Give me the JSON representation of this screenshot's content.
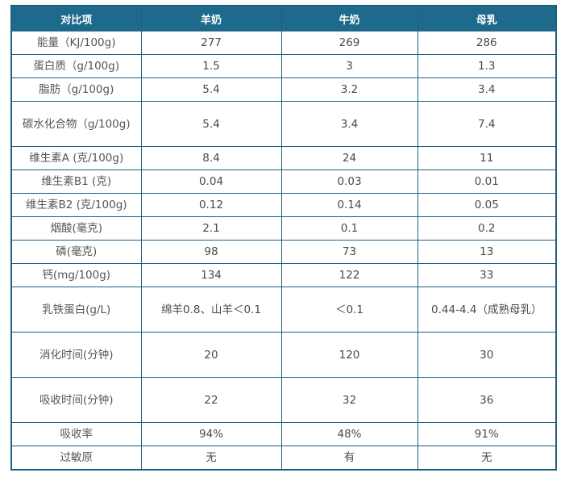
{
  "headers": [
    "对比项",
    "羊奶",
    "牛奶",
    "母乳"
  ],
  "rows": [
    {
      "label": "能量（KJ/100g)",
      "goat": "277",
      "cow": "269",
      "breast": "286"
    },
    {
      "label": "蛋白质（g/100g)",
      "goat": "1.5",
      "cow": "3",
      "breast": "1.3"
    },
    {
      "label": "脂肪（g/100g)",
      "goat": "5.4",
      "cow": "3.2",
      "breast": "3.4"
    },
    {
      "label": "碳水化合物（g/100g)",
      "goat": "5.4",
      "cow": "3.4",
      "breast": "7.4"
    },
    {
      "label": "维生素A (克/100g)",
      "goat": "8.4",
      "cow": "24",
      "breast": "11"
    },
    {
      "label": "维生素B1 (克)",
      "goat": "0.04",
      "cow": "0.03",
      "breast": "0.01"
    },
    {
      "label": "维生素B2 (克/100g)",
      "goat": "0.12",
      "cow": "0.14",
      "breast": "0.05"
    },
    {
      "label": "烟酸(毫克)",
      "goat": "2.1",
      "cow": "0.1",
      "breast": "0.2"
    },
    {
      "label": "磷(毫克)",
      "goat": "98",
      "cow": "73",
      "breast": "13"
    },
    {
      "label": "钙(mg/100g)",
      "goat": "134",
      "cow": "122",
      "breast": "33"
    },
    {
      "label": "乳铁蛋白(g/L)",
      "goat": "绵羊0.8、山羊＜0.1",
      "cow": "＜0.1",
      "breast": "0.44-4.4（成熟母乳）"
    },
    {
      "label": "消化时间(分钟)",
      "goat": "20",
      "cow": "120",
      "breast": "30"
    },
    {
      "label": "吸收时间(分钟)",
      "goat": "22",
      "cow": "32",
      "breast": "36"
    },
    {
      "label": "吸收率",
      "goat": "94%",
      "cow": "48%",
      "breast": "91%"
    },
    {
      "label": "过敏原",
      "goat": "无",
      "cow": "有",
      "breast": "无"
    }
  ]
}
